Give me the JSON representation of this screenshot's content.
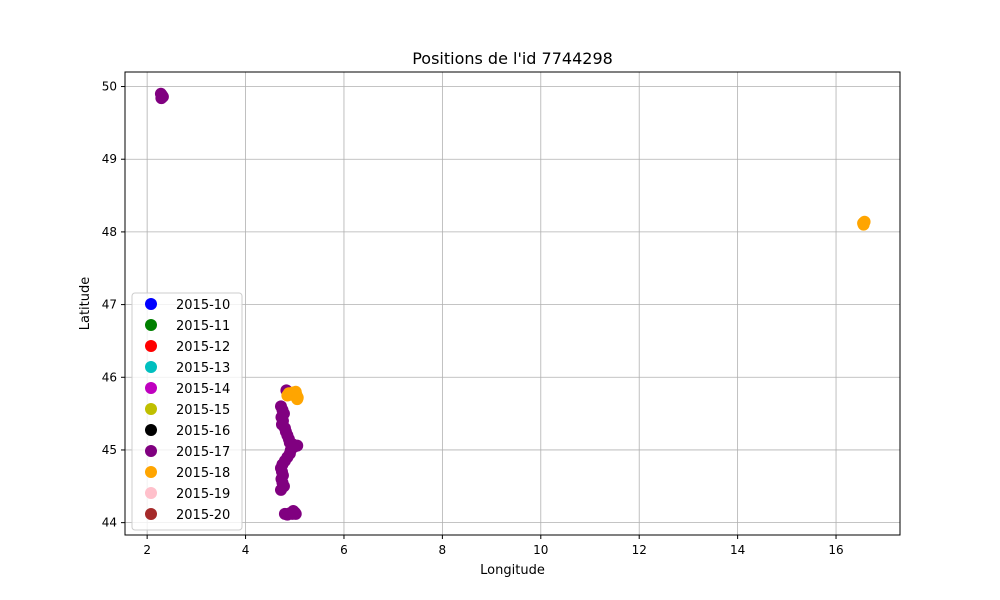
{
  "chart_data": {
    "type": "scatter",
    "title": "Positions de l'id 7744298",
    "xlabel": "Longitude",
    "ylabel": "Latitude",
    "xlim": [
      1.55,
      17.3
    ],
    "ylim": [
      43.83,
      50.2
    ],
    "xticks": [
      2,
      4,
      6,
      8,
      10,
      12,
      14,
      16
    ],
    "yticks": [
      44,
      45,
      46,
      47,
      48,
      49,
      50
    ],
    "grid": true,
    "legend_position": "lower left",
    "series": [
      {
        "name": "2015-10",
        "color": "#0000ff",
        "points": []
      },
      {
        "name": "2015-11",
        "color": "#008000",
        "points": []
      },
      {
        "name": "2015-12",
        "color": "#ff0000",
        "points": []
      },
      {
        "name": "2015-13",
        "color": "#00bfbf",
        "points": []
      },
      {
        "name": "2015-14",
        "color": "#bf00bf",
        "points": []
      },
      {
        "name": "2015-15",
        "color": "#bfbf00",
        "points": []
      },
      {
        "name": "2015-16",
        "color": "#000000",
        "points": []
      },
      {
        "name": "2015-17",
        "color": "#800080",
        "points": [
          [
            2.28,
            49.9
          ],
          [
            2.3,
            49.88
          ],
          [
            2.32,
            49.86
          ],
          [
            2.29,
            49.84
          ],
          [
            4.72,
            45.6
          ],
          [
            4.75,
            45.55
          ],
          [
            4.78,
            45.5
          ],
          [
            4.73,
            45.45
          ],
          [
            4.76,
            45.4
          ],
          [
            4.74,
            45.35
          ],
          [
            4.8,
            45.3
          ],
          [
            4.82,
            45.25
          ],
          [
            4.85,
            45.2
          ],
          [
            4.88,
            45.15
          ],
          [
            4.9,
            45.1
          ],
          [
            4.95,
            45.08
          ],
          [
            5.0,
            45.05
          ],
          [
            5.05,
            45.06
          ],
          [
            4.92,
            45.0
          ],
          [
            4.9,
            44.95
          ],
          [
            4.85,
            44.9
          ],
          [
            4.8,
            44.85
          ],
          [
            4.75,
            44.8
          ],
          [
            4.72,
            44.75
          ],
          [
            4.74,
            44.7
          ],
          [
            4.76,
            44.65
          ],
          [
            4.73,
            44.6
          ],
          [
            4.75,
            44.55
          ],
          [
            4.78,
            44.5
          ],
          [
            4.72,
            44.45
          ],
          [
            4.8,
            44.12
          ],
          [
            4.85,
            44.11
          ],
          [
            4.9,
            44.13
          ],
          [
            4.95,
            44.12
          ],
          [
            5.0,
            44.14
          ],
          [
            5.02,
            44.12
          ],
          [
            4.97,
            44.16
          ],
          [
            4.83,
            45.82
          ]
        ]
      },
      {
        "name": "2015-18",
        "color": "#ffa500",
        "points": [
          [
            4.88,
            45.78
          ],
          [
            4.92,
            45.76
          ],
          [
            4.96,
            45.79
          ],
          [
            5.0,
            45.77
          ],
          [
            5.04,
            45.75
          ],
          [
            5.06,
            45.72
          ],
          [
            4.85,
            45.75
          ],
          [
            5.02,
            45.8
          ],
          [
            5.05,
            45.7
          ],
          [
            16.55,
            48.12
          ],
          [
            16.58,
            48.14
          ],
          [
            16.56,
            48.1
          ]
        ]
      },
      {
        "name": "2015-19",
        "color": "#ffc0cb",
        "points": []
      },
      {
        "name": "2015-20",
        "color": "#a52a2a",
        "points": []
      }
    ]
  }
}
